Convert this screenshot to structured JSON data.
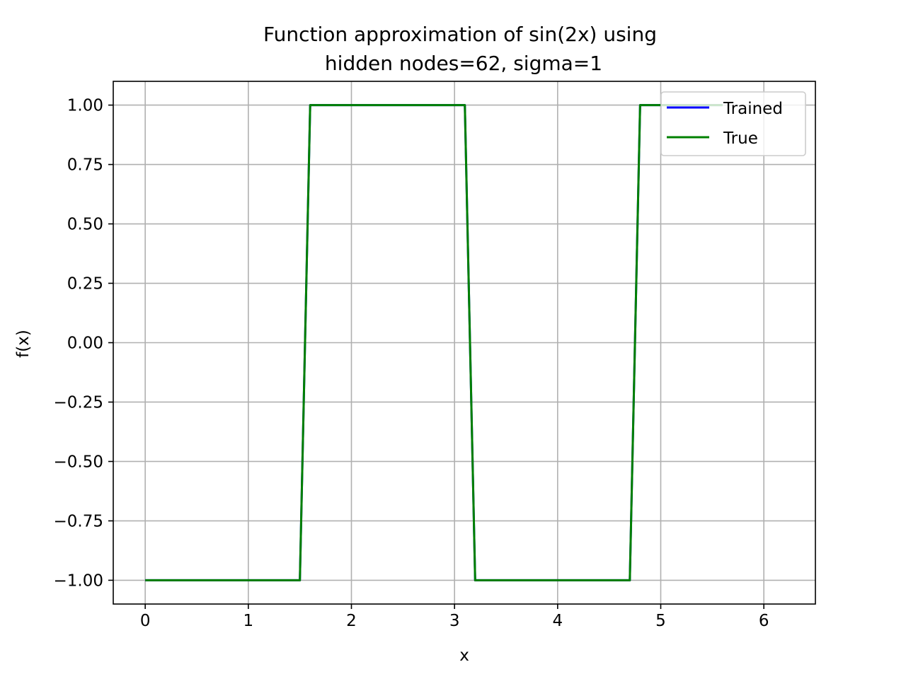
{
  "chart_data": {
    "type": "line",
    "title": "Function approximation of sin(2x) using",
    "subtitle": "hidden nodes=62, sigma=1",
    "xlabel": "x",
    "ylabel": "f(x)",
    "xlim": [
      -0.31,
      6.5
    ],
    "ylim": [
      -1.1,
      1.1
    ],
    "xticks": [
      0,
      1,
      2,
      3,
      4,
      5,
      6
    ],
    "xtick_labels": [
      "0",
      "1",
      "2",
      "3",
      "4",
      "5",
      "6"
    ],
    "yticks": [
      1.0,
      0.75,
      0.5,
      0.25,
      0.0,
      -0.25,
      -0.5,
      -0.75,
      -1.0
    ],
    "ytick_labels": [
      "1.00",
      "0.75",
      "0.50",
      "0.25",
      "0.00",
      "−0.25",
      "−0.50",
      "−0.75",
      "−1.00"
    ],
    "grid": true,
    "legend_position": "top-right",
    "series": [
      {
        "name": "Trained",
        "color": "#0000ff",
        "x": [
          0,
          1.5,
          1.6,
          3.1,
          3.2,
          4.7,
          4.8,
          5.6
        ],
        "y": [
          -1,
          -1,
          1,
          1,
          -1,
          -1,
          1,
          1
        ]
      },
      {
        "name": "True",
        "color": "#008000",
        "x": [
          0,
          1.5,
          1.6,
          3.1,
          3.2,
          4.7,
          4.8,
          5.6
        ],
        "y": [
          -1,
          -1,
          1,
          1,
          -1,
          -1,
          1,
          1
        ]
      }
    ]
  }
}
